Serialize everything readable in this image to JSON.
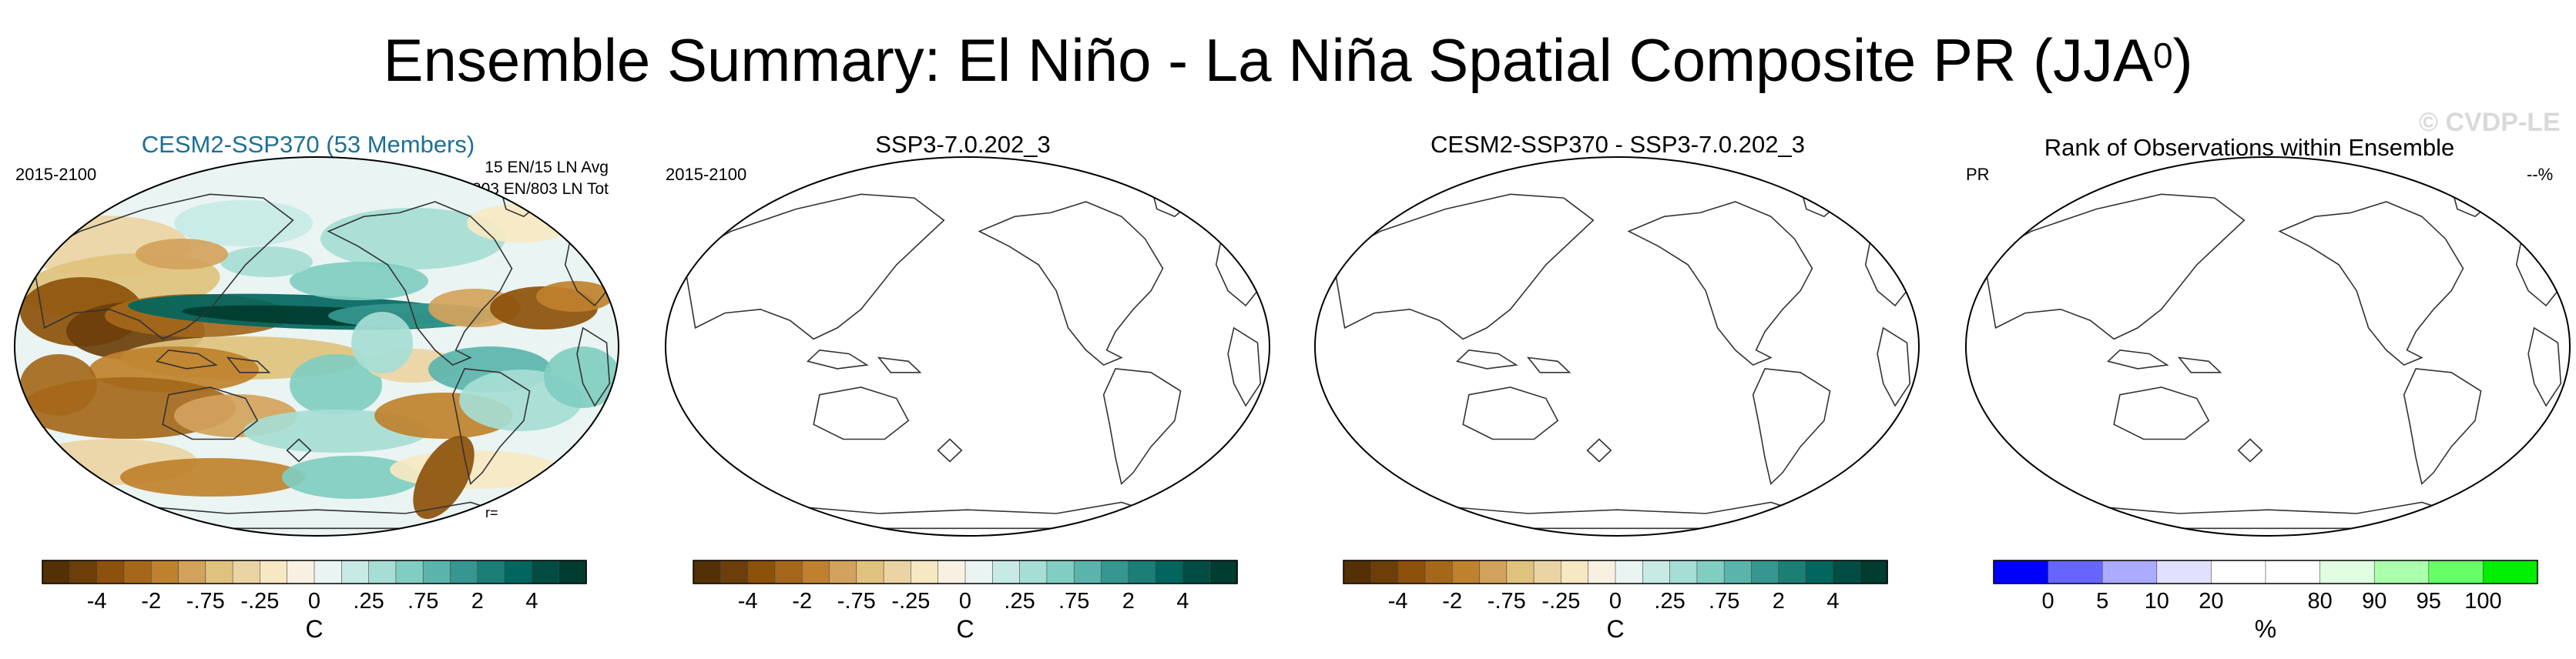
{
  "title_main": "Ensemble Summary: El Niño - La Niña Spatial Composite PR (JJA",
  "title_sup": "0",
  "title_close": ")",
  "watermark": "© CVDP-LE",
  "chart_data": [
    {
      "type": "heatmap",
      "title": "CESM2-SSP370 (53 Members)",
      "left_label": "2015-2100",
      "right_label_1": "15 EN/15 LN Avg",
      "right_label_2": "803 EN/803 LN Tot",
      "corr_label": "r=",
      "has_field": true,
      "colorbar": {
        "colors": [
          "#543005",
          "#6b3e0a",
          "#8c510a",
          "#a5681b",
          "#bf812d",
          "#d3a25c",
          "#dfc27d",
          "#ead4a4",
          "#f6e8c3",
          "#f8f1e1",
          "#e9f4f3",
          "#c7eae5",
          "#a6ddd5",
          "#80cdc1",
          "#5ab4ac",
          "#35978f",
          "#1b7f76",
          "#01665e",
          "#014d44",
          "#003c30"
        ],
        "tick_labels": [
          "-4",
          "-2",
          "-.75",
          "-.25",
          "0",
          ".25",
          ".75",
          "2",
          "4"
        ],
        "unit": "C"
      }
    },
    {
      "type": "heatmap",
      "title": "SSP3-7.0.202_3",
      "left_label": "2015-2100",
      "has_field": false,
      "colorbar": {
        "colors": [
          "#543005",
          "#6b3e0a",
          "#8c510a",
          "#a5681b",
          "#bf812d",
          "#d3a25c",
          "#dfc27d",
          "#ead4a4",
          "#f6e8c3",
          "#f8f1e1",
          "#e9f4f3",
          "#c7eae5",
          "#a6ddd5",
          "#80cdc1",
          "#5ab4ac",
          "#35978f",
          "#1b7f76",
          "#01665e",
          "#014d44",
          "#003c30"
        ],
        "tick_labels": [
          "-4",
          "-2",
          "-.75",
          "-.25",
          "0",
          ".25",
          ".75",
          "2",
          "4"
        ],
        "unit": "C"
      }
    },
    {
      "type": "heatmap",
      "title": "CESM2-SSP370 - SSP3-7.0.202_3",
      "has_field": false,
      "colorbar": {
        "colors": [
          "#543005",
          "#6b3e0a",
          "#8c510a",
          "#a5681b",
          "#bf812d",
          "#d3a25c",
          "#dfc27d",
          "#ead4a4",
          "#f6e8c3",
          "#f8f1e1",
          "#e9f4f3",
          "#c7eae5",
          "#a6ddd5",
          "#80cdc1",
          "#5ab4ac",
          "#35978f",
          "#1b7f76",
          "#01665e",
          "#014d44",
          "#003c30"
        ],
        "tick_labels": [
          "-4",
          "-2",
          "-.75",
          "-.25",
          "0",
          ".25",
          ".75",
          "2",
          "4"
        ],
        "unit": "C"
      }
    },
    {
      "type": "heatmap",
      "title": "Rank of Observations within Ensemble",
      "left_label": "PR",
      "right_label": "--%",
      "has_field": false,
      "colorbar": {
        "colors": [
          "#0000ff",
          "#6666ff",
          "#aaaaff",
          "#e0e0ff",
          "#ffffff",
          "#ffffff",
          "#e0ffe0",
          "#aaffaa",
          "#66ff66",
          "#00ee00"
        ],
        "tick_labels": [
          "0",
          "5",
          "10",
          "20",
          "80",
          "90",
          "95",
          "100"
        ],
        "unit": "%"
      }
    }
  ]
}
